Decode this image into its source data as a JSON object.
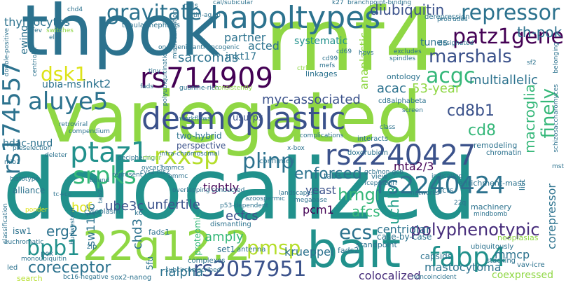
{
  "background": "#ffffff",
  "palette": {
    "lime": "#8fd744",
    "yellow_green": "#b5de2b",
    "green": "#35b779",
    "teal": "#21918c",
    "dark_teal": "#2c728e",
    "blue": "#3b528b",
    "indigo": "#472d7b",
    "purple": "#440154",
    "light_yellow": "#dde318",
    "sea_green": "#1f9e89",
    "mid_green": "#54c568"
  },
  "words": [
    "delocalized",
    "variegated",
    "thpok",
    "rnf4",
    "hapoltypes",
    "22q12.2",
    "bait",
    "desmoplastic",
    "rs714909",
    "rs2240427",
    "rs2240424",
    "rs2057951",
    "polyphenotypic",
    "fabp4",
    "repressor",
    "patz1gene",
    "marshals",
    "gravitate",
    "aluye5",
    "ptaz1",
    "srpks",
    "rxxsp",
    "acgc",
    "dsk1",
    "rs174557",
    "th-pok",
    "coreceptor",
    "bpb1",
    "pmsp",
    "ecs",
    "plinp",
    "finely",
    "multiallelic",
    "cd8b1",
    "diubiquitin",
    "myc-associated",
    "enforced",
    "mta2/3",
    "cd8",
    "hmgi",
    "afcs",
    "uchl3",
    "krueppel",
    "rialpha",
    "mastocytoma",
    "coexpressed",
    "colocalized",
    "corepressor",
    "erg2",
    "ube3c",
    "sw1116",
    "hof",
    "unfertile",
    "tightly",
    "chd3",
    "ecfcs",
    "yeast",
    "pcm1",
    "amply",
    "centriolar",
    "mmcp",
    "macroglia",
    "53-year",
    "anaplastic",
    "acac",
    "sarcomas",
    "inkt17",
    "partner",
    "acted",
    "systematic",
    "tunes",
    "ubia-ms",
    "inkt2",
    "thymocytes",
    "ewing",
    "hdac-nurd",
    "alliance",
    "cd8alphabeta",
    "linkages",
    "usurps",
    "two-hybrid",
    "perspective",
    "ontology",
    "neoplasias",
    "ubiquitously",
    "case-by-case",
    "capsids",
    "standpoint",
    "antenna",
    "set1",
    "fads1",
    "fads2",
    "zip",
    "pox",
    "cytoplasm",
    "5fu",
    "subcircumscribed",
    "sox2-nanog",
    "bc16-negative",
    "complexes",
    "noncoincident",
    "stacking",
    "vav-icre",
    "search",
    "led",
    "monoubiquitin",
    "isw1",
    "k6",
    "proteomic",
    "dismantling",
    "p53-dependent",
    "enrichment-mass",
    "tgcts",
    "networks",
    "machinery",
    "mindbomb",
    "22q",
    "list",
    "tab3",
    "view",
    "fcepsilonri",
    "megabase",
    "landscapes",
    "confirmed",
    "doxorubicin",
    "chromatin",
    "remodeling",
    "complications",
    "interacts",
    "class",
    "screen",
    "mefs",
    "oncogenic/anti-oncogenic",
    "tubular-nephritis",
    "nhls",
    "cal/subicular",
    "tin-ag-rp",
    "k27",
    "branchpoint-binding",
    "chd4",
    "elaf",
    "fev",
    "switches",
    "centriolar",
    "mis-localization",
    "cd99",
    "ctrl",
    "hpvs",
    "cd69",
    "excludes",
    "spindles",
    "belonging",
    "schizosaccharomyces",
    "protrudes",
    "designated",
    "derepression",
    "double-positive",
    "preselection",
    "compendium",
    "deleter",
    "retroviral",
    "mib1",
    "cys2-his2",
    "histotype",
    "tc+cc",
    "tab2",
    "bound",
    "deciphering",
    "minor",
    "ovcar3",
    "represent",
    "bmmc",
    "bmmcs",
    "guanine-rich",
    "consistently",
    "fads",
    "polyubiquitination",
    "intra-chromosomal",
    "workflows",
    "tiny",
    "sf2",
    "azoospermic",
    "gcb/non-gcb",
    "indicating",
    "overlapping",
    "conducted",
    "classification",
    "ponder",
    "hudwestern",
    "mst",
    "x-box",
    "euchromatic"
  ]
}
